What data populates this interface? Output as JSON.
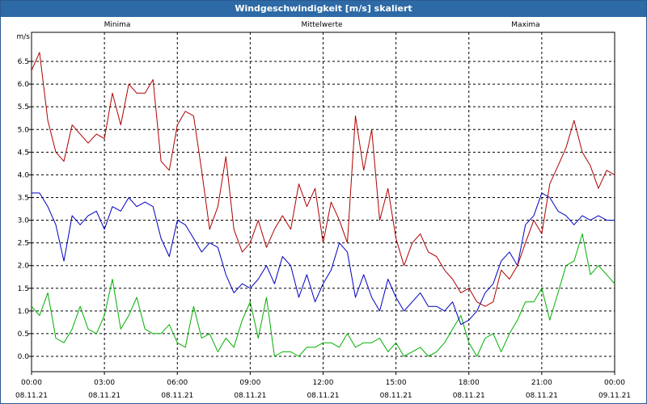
{
  "window": {
    "title": "Windgeschwindigkeit [m/s] skaliert"
  },
  "chart_data": {
    "type": "line",
    "title": "Windgeschwindigkeit [m/s] skaliert",
    "ylabel": "m/s",
    "ylim": [
      -0.3,
      7.1
    ],
    "yticks": [
      "0.0",
      "0.5",
      "1.0",
      "1.5",
      "2.0",
      "2.5",
      "3.0",
      "3.5",
      "4.0",
      "4.5",
      "5.0",
      "5.5",
      "6.0",
      "6.5"
    ],
    "xlim": [
      0,
      24
    ],
    "xticks": [
      {
        "time": "00:00",
        "date": "08.11.21",
        "hour": 0
      },
      {
        "time": "03:00",
        "date": "08.11.21",
        "hour": 3
      },
      {
        "time": "06:00",
        "date": "08.11.21",
        "hour": 6
      },
      {
        "time": "09:00",
        "date": "08.11.21",
        "hour": 9
      },
      {
        "time": "12:00",
        "date": "08.11.21",
        "hour": 12
      },
      {
        "time": "15:00",
        "date": "08.11.21",
        "hour": 15
      },
      {
        "time": "18:00",
        "date": "08.11.21",
        "hour": 18
      },
      {
        "time": "21:00",
        "date": "08.11.21",
        "hour": 21
      },
      {
        "time": "00:00",
        "date": "09.11.21",
        "hour": 24
      }
    ],
    "grid": true,
    "legend_position": "top",
    "x_hours": [
      0,
      0.33,
      0.67,
      1,
      1.33,
      1.67,
      2,
      2.33,
      2.67,
      3,
      3.33,
      3.67,
      4,
      4.33,
      4.67,
      5,
      5.33,
      5.67,
      6,
      6.33,
      6.67,
      7,
      7.33,
      7.67,
      8,
      8.33,
      8.67,
      9,
      9.33,
      9.67,
      10,
      10.33,
      10.67,
      11,
      11.33,
      11.67,
      12,
      12.33,
      12.67,
      13,
      13.33,
      13.67,
      14,
      14.33,
      14.67,
      15,
      15.33,
      15.67,
      16,
      16.33,
      16.67,
      17,
      17.33,
      17.67,
      18,
      18.33,
      18.67,
      19,
      19.33,
      19.67,
      20,
      20.33,
      20.67,
      21,
      21.33,
      21.67,
      22,
      22.33,
      22.67,
      23,
      23.33,
      23.67,
      24
    ],
    "series": [
      {
        "name": "Minima",
        "color": "#00b000",
        "values": [
          1.1,
          0.9,
          1.4,
          0.4,
          0.3,
          0.6,
          1.1,
          0.6,
          0.5,
          0.9,
          1.7,
          0.6,
          0.9,
          1.3,
          0.6,
          0.5,
          0.5,
          0.7,
          0.3,
          0.2,
          1.1,
          0.4,
          0.5,
          0.1,
          0.4,
          0.2,
          0.8,
          1.2,
          0.4,
          1.3,
          0.0,
          0.1,
          0.1,
          0.0,
          0.2,
          0.2,
          0.3,
          0.3,
          0.2,
          0.5,
          0.2,
          0.3,
          0.3,
          0.4,
          0.1,
          0.3,
          0.0,
          0.1,
          0.2,
          0.0,
          0.1,
          0.3,
          0.6,
          0.9,
          0.3,
          0.0,
          0.4,
          0.5,
          0.1,
          0.5,
          0.8,
          1.2,
          1.2,
          1.5,
          0.8,
          1.4,
          2.0,
          2.1,
          2.7,
          1.8,
          2.0,
          1.8,
          1.6
        ]
      },
      {
        "name": "Mittelwerte",
        "color": "#0000c0",
        "values": [
          3.6,
          3.6,
          3.3,
          2.9,
          2.1,
          3.1,
          2.9,
          3.1,
          3.2,
          2.8,
          3.3,
          3.2,
          3.5,
          3.3,
          3.4,
          3.3,
          2.6,
          2.2,
          3.0,
          2.9,
          2.6,
          2.3,
          2.5,
          2.4,
          1.8,
          1.4,
          1.6,
          1.5,
          1.7,
          2.0,
          1.6,
          2.2,
          2.0,
          1.3,
          1.8,
          1.2,
          1.6,
          1.9,
          2.5,
          2.3,
          1.3,
          1.8,
          1.3,
          1.0,
          1.7,
          1.3,
          1.0,
          1.2,
          1.4,
          1.1,
          1.1,
          1.0,
          1.2,
          0.7,
          0.8,
          1.0,
          1.4,
          1.6,
          2.1,
          2.3,
          2.0,
          2.9,
          3.1,
          3.6,
          3.5,
          3.2,
          3.1,
          2.9,
          3.1,
          3.0,
          3.1,
          3.0,
          3.0
        ]
      },
      {
        "name": "Maxima",
        "color": "#b00000",
        "values": [
          6.3,
          6.7,
          5.2,
          4.5,
          4.3,
          5.1,
          4.9,
          4.7,
          4.9,
          4.8,
          5.8,
          5.1,
          6.0,
          5.8,
          5.8,
          6.1,
          4.3,
          4.1,
          5.1,
          5.4,
          5.3,
          4.1,
          2.8,
          3.3,
          4.4,
          2.8,
          2.3,
          2.5,
          3.0,
          2.4,
          2.8,
          3.1,
          2.8,
          3.8,
          3.3,
          3.7,
          2.5,
          3.4,
          3.0,
          2.5,
          5.3,
          4.1,
          5.0,
          3.0,
          3.7,
          2.6,
          2.0,
          2.5,
          2.7,
          2.3,
          2.2,
          1.9,
          1.7,
          1.4,
          1.5,
          1.2,
          1.1,
          1.2,
          1.9,
          1.7,
          2.0,
          2.5,
          3.0,
          2.7,
          3.8,
          4.2,
          4.6,
          5.2,
          4.5,
          4.2,
          3.7,
          4.1,
          4.0
        ]
      }
    ]
  }
}
